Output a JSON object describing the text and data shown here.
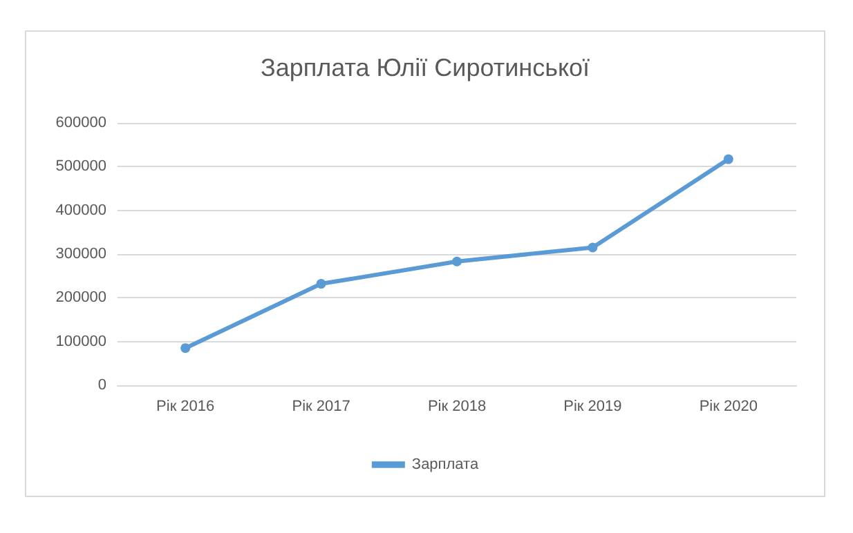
{
  "chart_data": {
    "type": "line",
    "title": "Зарплата Юлії Сиротинської",
    "categories": [
      "Рік 2016",
      "Рік 2017",
      "Рік 2018",
      "Рік 2019",
      "Рік 2020"
    ],
    "series": [
      {
        "name": "Зарплата",
        "color": "#5b9bd5",
        "values": [
          85000,
          232000,
          283000,
          315000,
          517000
        ]
      }
    ],
    "ylim": [
      0,
      600000
    ],
    "yticks": [
      0,
      100000,
      200000,
      300000,
      400000,
      500000,
      600000
    ],
    "grid": "y",
    "legend": "bottom",
    "marker": "circle",
    "line_style": "solid"
  }
}
